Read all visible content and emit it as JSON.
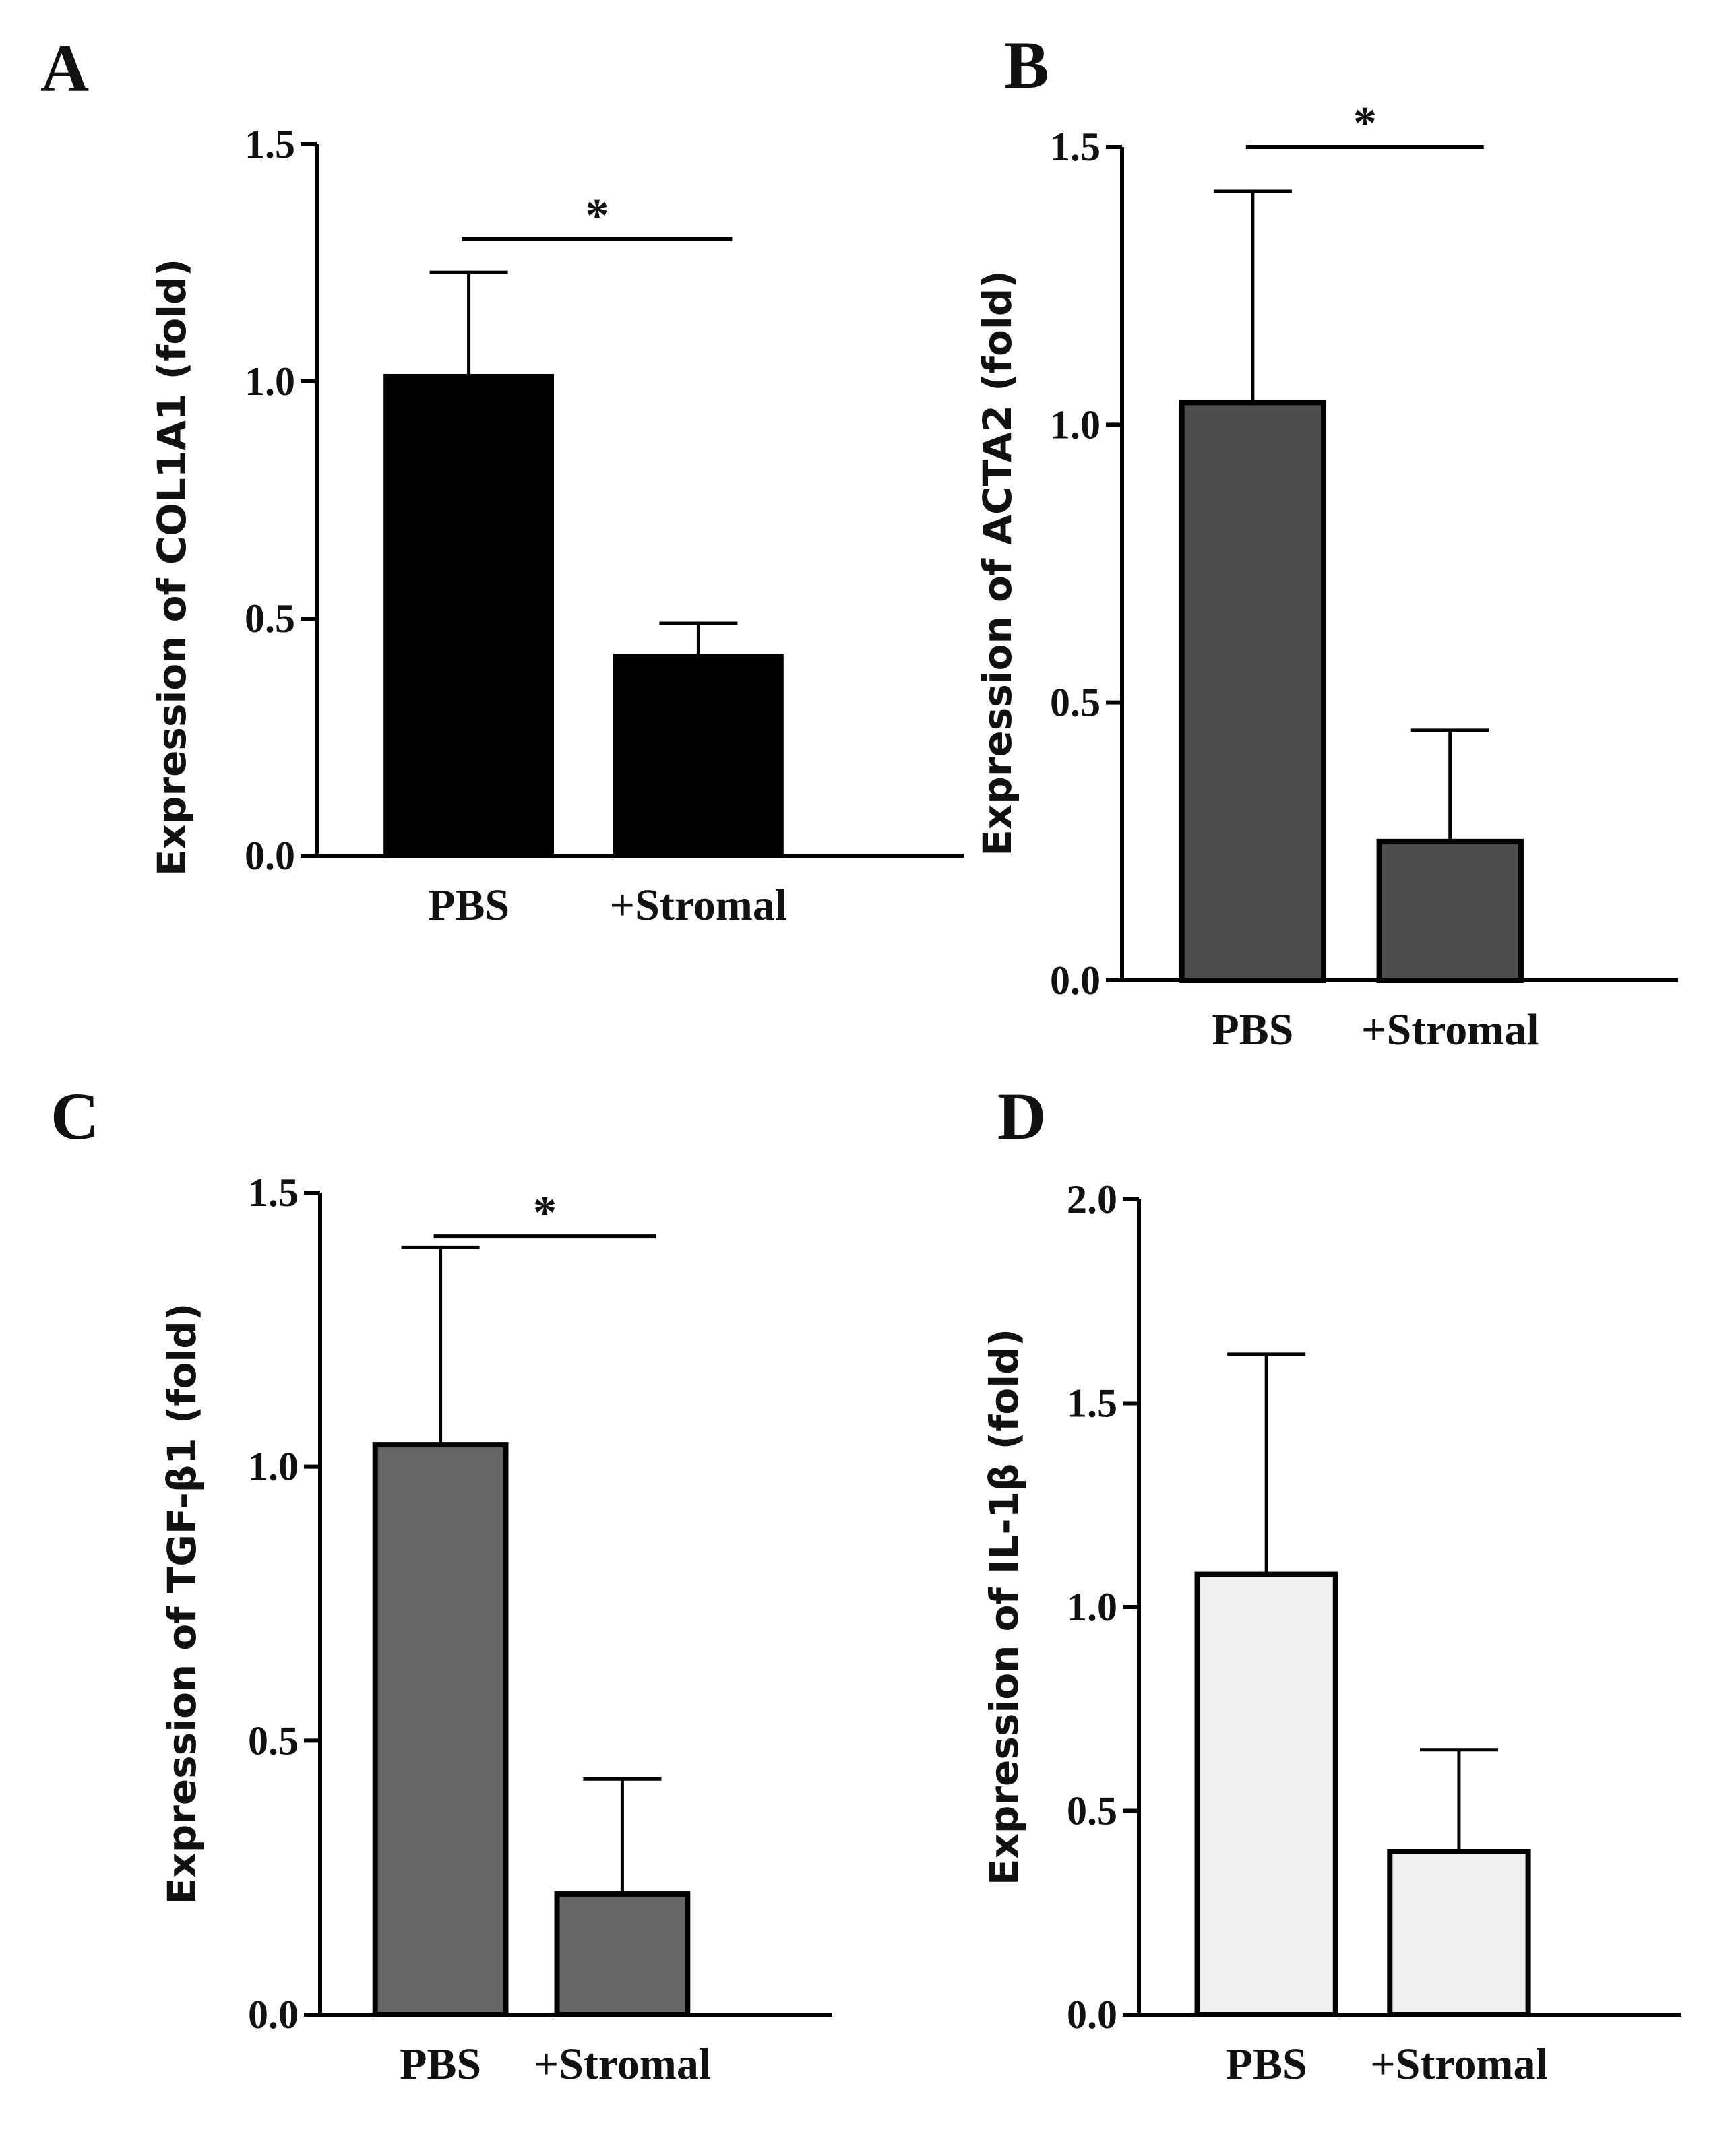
{
  "chart_data": [
    {
      "panel": "A",
      "type": "bar",
      "categories": [
        "PBS",
        "+Stromal"
      ],
      "values": [
        1.01,
        0.42
      ],
      "errors": [
        0.22,
        0.07
      ],
      "ylabel": "Expression of COL1A1 (fold)",
      "ylim": [
        0,
        1.5
      ],
      "yticks": [
        "0.0",
        "0.5",
        "1.0",
        "1.5"
      ],
      "bar_color": "#000000",
      "significance": "*"
    },
    {
      "panel": "B",
      "type": "bar",
      "categories": [
        "PBS",
        "+Stromal"
      ],
      "values": [
        1.04,
        0.25
      ],
      "errors": [
        0.38,
        0.2
      ],
      "ylabel": "Expression of ACTA2 (fold)",
      "ylim": [
        0,
        1.5
      ],
      "yticks": [
        "0.0",
        "0.5",
        "1.0",
        "1.5"
      ],
      "bar_color": "#4d4d4d",
      "significance": "*"
    },
    {
      "panel": "C",
      "type": "bar",
      "categories": [
        "PBS",
        "+Stromal"
      ],
      "values": [
        1.04,
        0.22
      ],
      "errors": [
        0.36,
        0.21
      ],
      "ylabel": "Expression of TGF-β1 (fold)",
      "ylim": [
        0,
        1.5
      ],
      "yticks": [
        "0.0",
        "0.5",
        "1.0",
        "1.5"
      ],
      "bar_color": "#666666",
      "significance": "*"
    },
    {
      "panel": "D",
      "type": "bar",
      "categories": [
        "PBS",
        "+Stromal"
      ],
      "values": [
        1.08,
        0.4
      ],
      "errors": [
        0.54,
        0.25
      ],
      "ylabel": "Expression of IL-1β (fold)",
      "ylim": [
        0,
        2.0
      ],
      "yticks": [
        "0.0",
        "0.5",
        "1.0",
        "1.5",
        "2.0"
      ],
      "bar_color": "#efefef",
      "significance": ""
    }
  ]
}
